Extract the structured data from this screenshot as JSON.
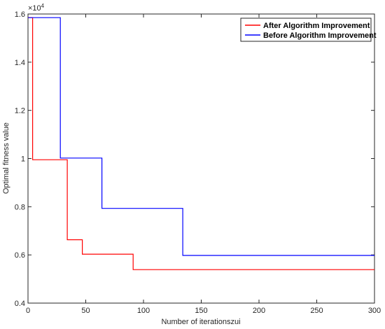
{
  "chart_data": {
    "type": "line",
    "xlabel": "Number of iterationszui",
    "ylabel": "Optimal fitness value",
    "xlim": [
      0,
      300
    ],
    "ylim": [
      0.4,
      1.6
    ],
    "y_exponent_label": "×10",
    "y_exponent_power": "4",
    "xticks": [
      "0",
      "50",
      "100",
      "150",
      "200",
      "250",
      "300"
    ],
    "yticks": [
      "0.4",
      "0.6",
      "0.8",
      "1",
      "1.2",
      "1.4",
      "1.6"
    ],
    "xtick_values": [
      0,
      50,
      100,
      150,
      200,
      250,
      300
    ],
    "ytick_values": [
      0.4,
      0.6,
      0.8,
      1.0,
      1.2,
      1.4,
      1.6
    ],
    "grid": false,
    "legend_position": "top-right",
    "series": [
      {
        "name": "After Algorithm Improvement",
        "color": "#ff0000",
        "step": true,
        "x": [
          0,
          4,
          4,
          34,
          34,
          47,
          47,
          91,
          91,
          300
        ],
        "y": [
          1.585,
          1.585,
          0.995,
          0.995,
          0.663,
          0.663,
          0.603,
          0.603,
          0.539,
          0.539
        ]
      },
      {
        "name": "Before Algorithm Improvement",
        "color": "#0000ff",
        "step": true,
        "x": [
          0,
          28,
          28,
          64,
          64,
          134,
          134,
          300
        ],
        "y": [
          1.585,
          1.585,
          1.002,
          1.002,
          0.793,
          0.793,
          0.598,
          0.598
        ]
      }
    ]
  }
}
